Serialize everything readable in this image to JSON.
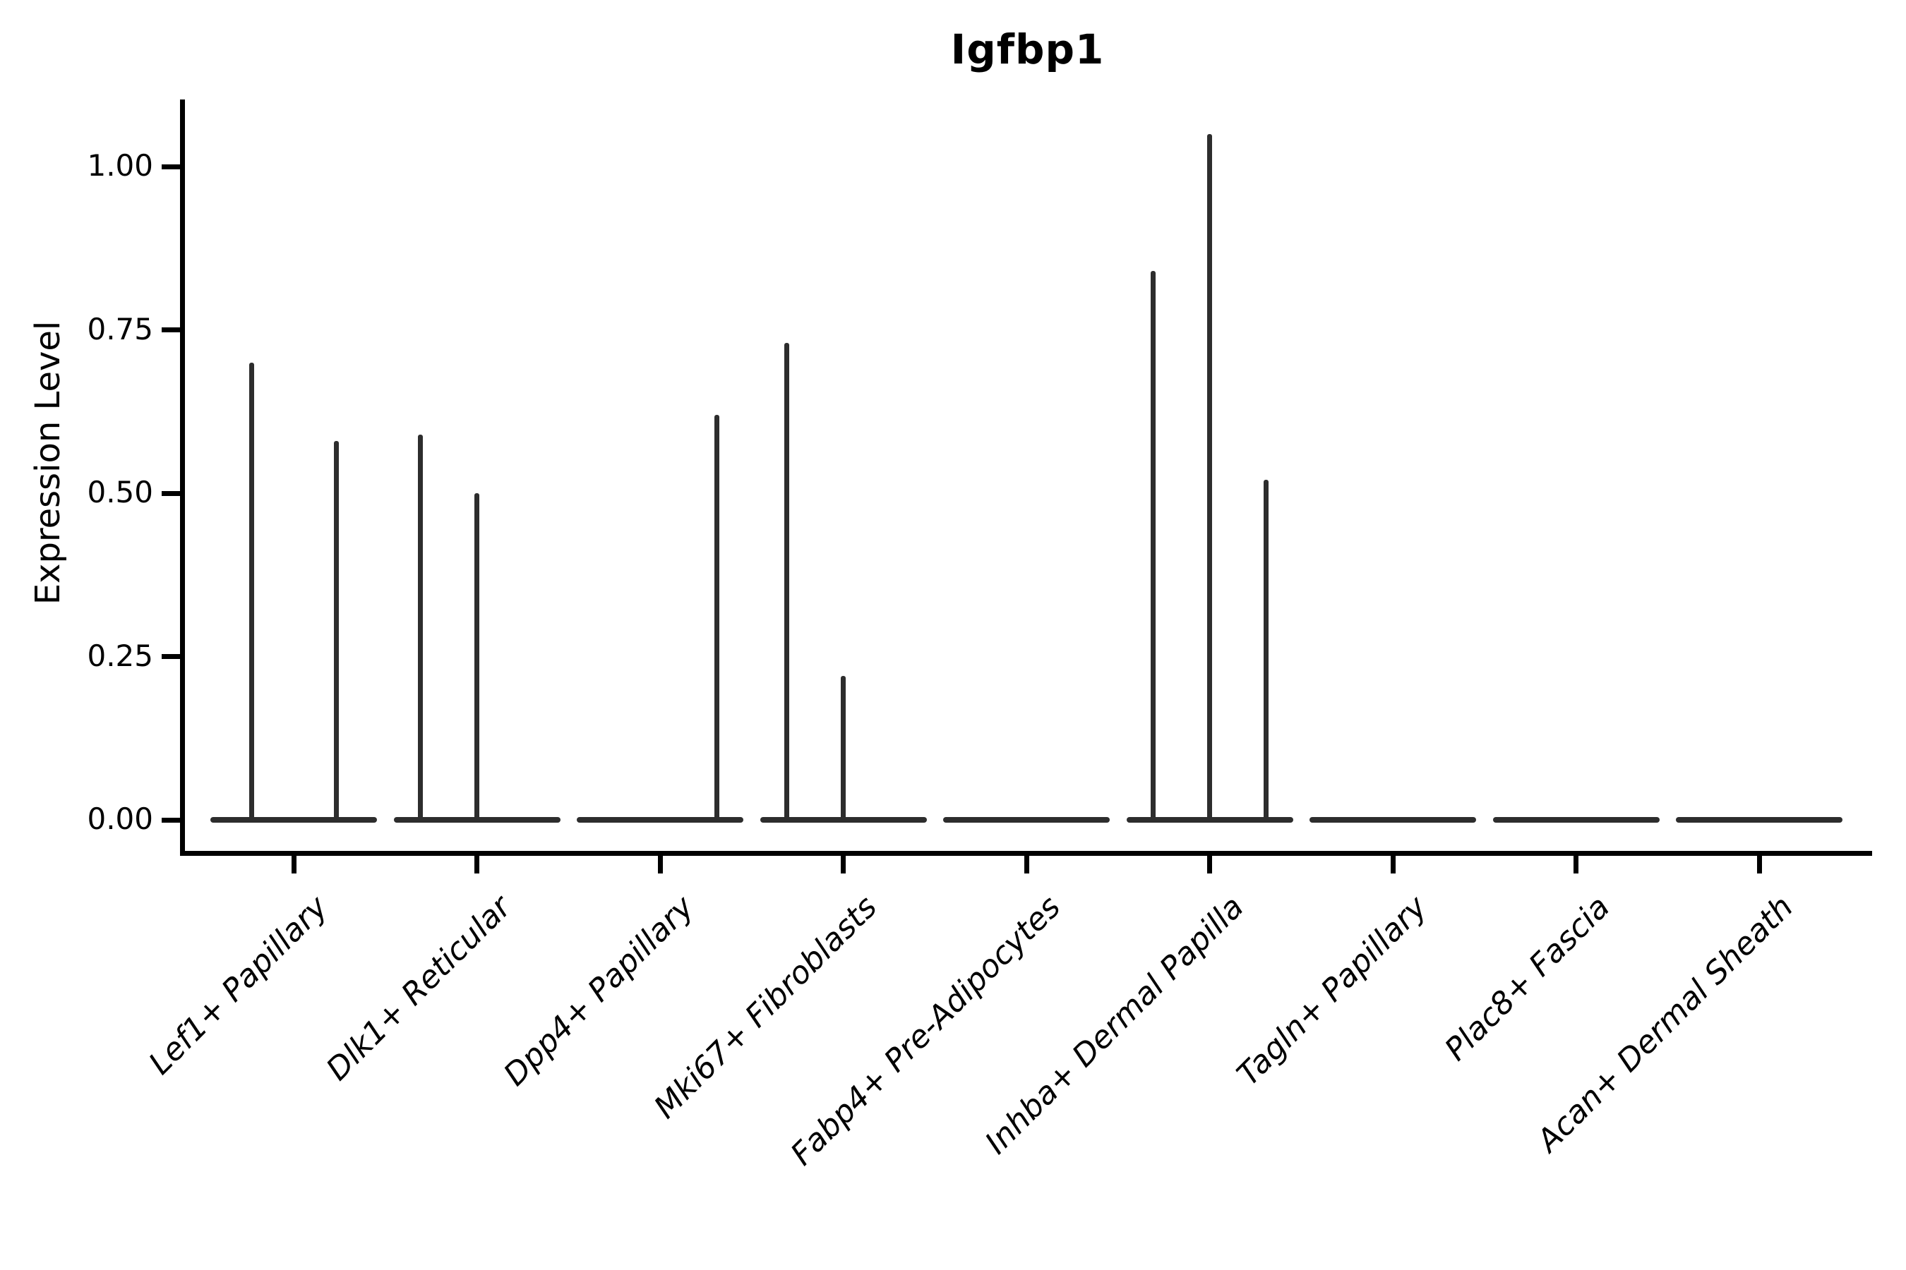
{
  "title": "Igfbp1",
  "y_axis": {
    "label": "Expression Level",
    "tick_labels": [
      "0.00",
      "0.25",
      "0.50",
      "0.75",
      "1.00"
    ]
  },
  "chart_data": {
    "type": "violin",
    "title": "Igfbp1",
    "xlabel": "",
    "ylabel": "Expression Level",
    "ylim": [
      -0.0525,
      1.1025
    ],
    "yticks": [
      0.0,
      0.25,
      0.5,
      0.75,
      1.0
    ],
    "ytick_labels": [
      "0.00",
      "0.25",
      "0.50",
      "0.75",
      "1.00"
    ],
    "grid": false,
    "legend": false,
    "line_color": "#2d2d2d",
    "axis_color": "#000000",
    "categories": [
      "Lef1+ Papillary",
      "Dlk1+ Reticular",
      "Dpp4+ Papillary",
      "Mki67+ Fibroblasts",
      "Fabp4+ Pre-Adipocytes",
      "Inhba+ Dermal Papilla",
      "Tagln+ Papillary",
      "Plac8+ Fascia",
      "Acan+ Dermal Sheath"
    ],
    "series": [
      {
        "name": "Lef1+ Papillary",
        "baseline_value": 0,
        "spikes": [
          {
            "offset": -60,
            "max_value": 0.7
          },
          {
            "offset": 60,
            "max_value": 0.58
          }
        ]
      },
      {
        "name": "Dlk1+ Reticular",
        "baseline_value": 0,
        "spikes": [
          {
            "offset": -80,
            "max_value": 0.59
          },
          {
            "offset": 0,
            "max_value": 0.5
          }
        ]
      },
      {
        "name": "Dpp4+ Papillary",
        "baseline_value": 0,
        "spikes": [
          {
            "offset": 80,
            "max_value": 0.62
          }
        ]
      },
      {
        "name": "Mki67+ Fibroblasts",
        "baseline_value": 0,
        "spikes": [
          {
            "offset": -80,
            "max_value": 0.73
          },
          {
            "offset": 0,
            "max_value": 0.22
          }
        ]
      },
      {
        "name": "Fabp4+ Pre-Adipocytes",
        "baseline_value": 0,
        "spikes": []
      },
      {
        "name": "Inhba+ Dermal Papilla",
        "baseline_value": 0,
        "spikes": [
          {
            "offset": -80,
            "max_value": 0.84
          },
          {
            "offset": 0,
            "max_value": 1.05
          },
          {
            "offset": 80,
            "max_value": 0.52
          }
        ]
      },
      {
        "name": "Tagln+ Papillary",
        "baseline_value": 0,
        "spikes": []
      },
      {
        "name": "Plac8+ Fascia",
        "baseline_value": 0,
        "spikes": []
      },
      {
        "name": "Acan+ Dermal Sheath",
        "baseline_value": 0,
        "spikes": []
      }
    ]
  }
}
